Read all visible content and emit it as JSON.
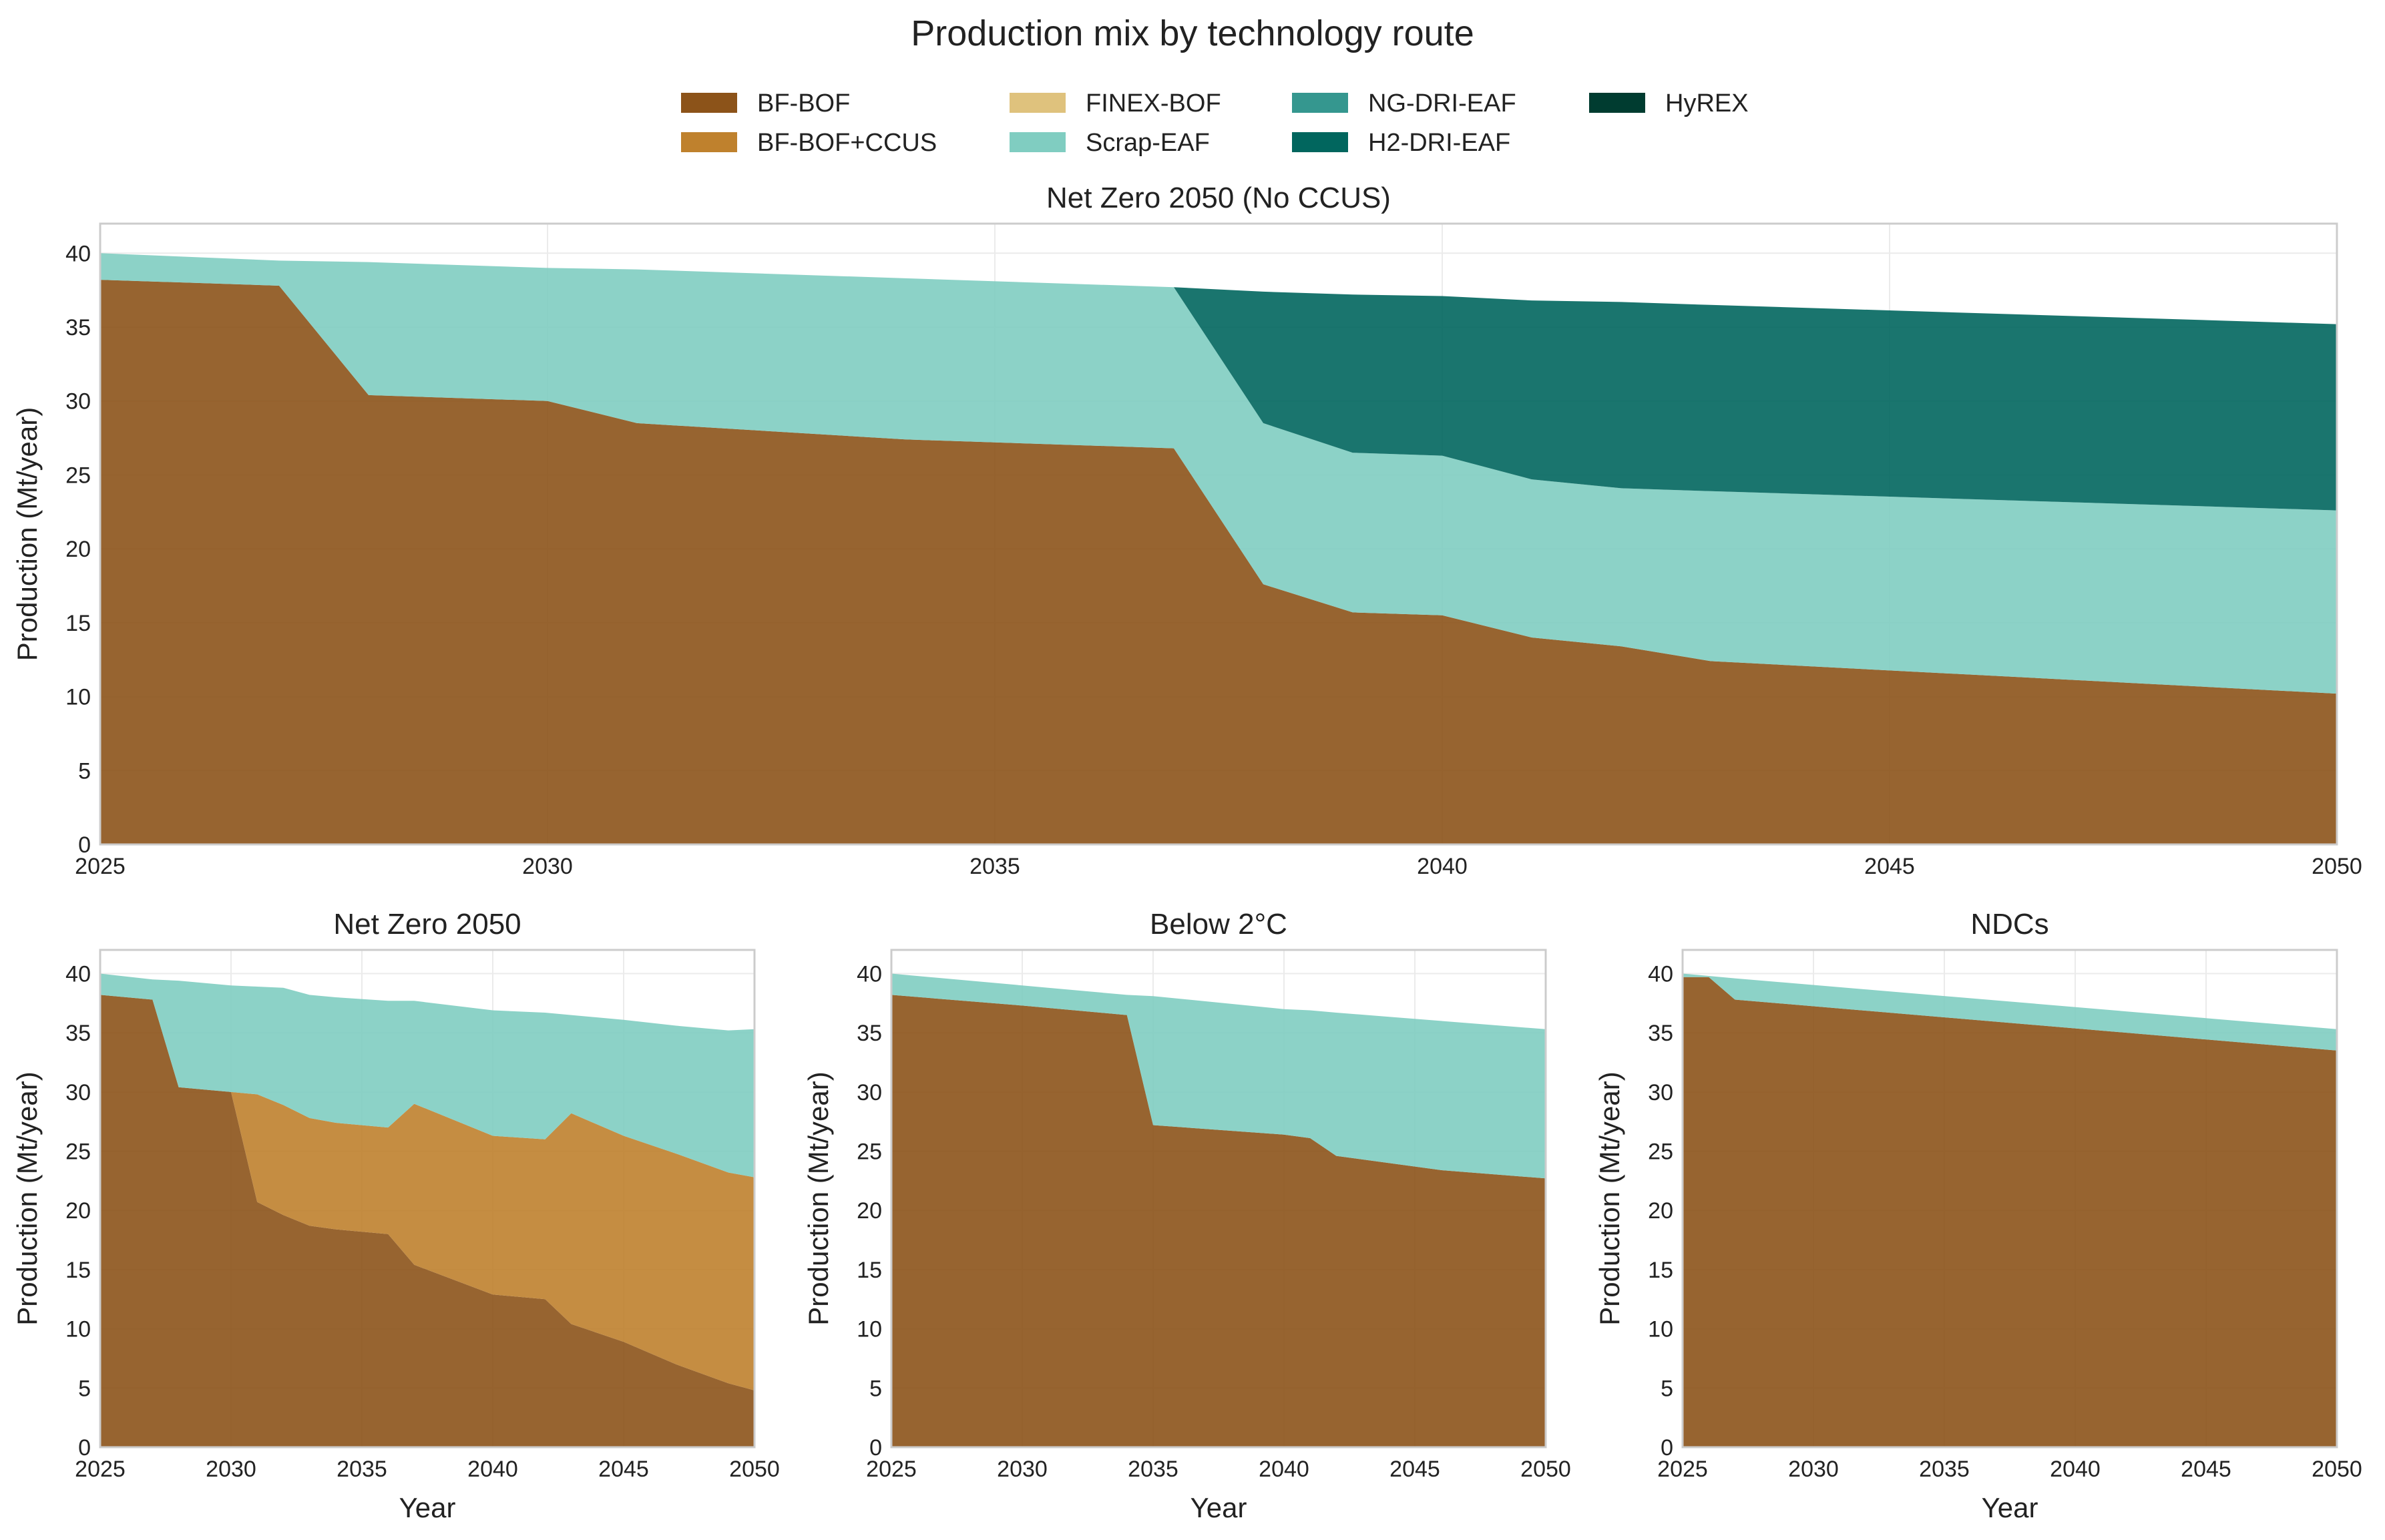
{
  "figure": {
    "title": "Production mix by technology route"
  },
  "legend": {
    "items": [
      {
        "name": "BF-BOF",
        "color": "#8C5319"
      },
      {
        "name": "BF-BOF+CCUS",
        "color": "#BF812D"
      },
      {
        "name": "FINEX-BOF",
        "color": "#DFC27D"
      },
      {
        "name": "Scrap-EAF",
        "color": "#80CDC1"
      },
      {
        "name": "NG-DRI-EAF",
        "color": "#35978F"
      },
      {
        "name": "H2-DRI-EAF",
        "color": "#01665E"
      },
      {
        "name": "HyREX",
        "color": "#003C30"
      }
    ]
  },
  "chart_data": [
    {
      "type": "area",
      "stacked": true,
      "title": "Net Zero 2050 (No CCUS)",
      "xlabel": "",
      "ylabel": "Production (Mt/year)",
      "xlim": [
        2025,
        2050
      ],
      "ylim": [
        0,
        42
      ],
      "xticks": [
        2025,
        2030,
        2035,
        2040,
        2045,
        2050
      ],
      "yticks": [
        0,
        5,
        10,
        15,
        20,
        25,
        30,
        35,
        40
      ],
      "grid": true,
      "x": [
        2025,
        2027,
        2028,
        2030,
        2031,
        2034,
        2037,
        2038,
        2039,
        2040,
        2041,
        2042,
        2043,
        2050
      ],
      "series": [
        {
          "name": "BF-BOF",
          "values": [
            38.2,
            37.8,
            30.4,
            30.0,
            28.5,
            27.4,
            26.8,
            17.6,
            15.7,
            15.5,
            14.0,
            13.4,
            12.4,
            10.2
          ]
        },
        {
          "name": "Scrap-EAF",
          "values": [
            1.8,
            1.7,
            9.0,
            9.0,
            10.4,
            10.9,
            10.9,
            10.9,
            10.8,
            10.8,
            10.7,
            10.7,
            11.5,
            12.4
          ]
        },
        {
          "name": "H2-DRI-EAF",
          "values": [
            0,
            0,
            0,
            0,
            0,
            0,
            0,
            8.9,
            10.7,
            10.8,
            12.1,
            12.6,
            12.6,
            12.6
          ]
        }
      ]
    },
    {
      "type": "area",
      "stacked": true,
      "title": "Net Zero 2050",
      "xlabel": "Year",
      "ylabel": "Production (Mt/year)",
      "xlim": [
        2025,
        2050
      ],
      "ylim": [
        0,
        42
      ],
      "xticks": [
        2025,
        2030,
        2035,
        2040,
        2045,
        2050
      ],
      "yticks": [
        0,
        5,
        10,
        15,
        20,
        25,
        30,
        35,
        40
      ],
      "grid": true,
      "x": [
        2025,
        2027,
        2028,
        2030,
        2031,
        2032,
        2033,
        2034,
        2036,
        2037,
        2040,
        2042,
        2043,
        2045,
        2047,
        2049,
        2050
      ],
      "series": [
        {
          "name": "BF-BOF",
          "values": [
            38.2,
            37.8,
            30.4,
            30.0,
            20.7,
            19.6,
            18.7,
            18.4,
            18.0,
            15.4,
            12.9,
            12.5,
            10.4,
            8.9,
            7.0,
            5.4,
            4.8
          ]
        },
        {
          "name": "BF-BOF+CCUS",
          "values": [
            0,
            0,
            0,
            0,
            9.1,
            9.3,
            9.1,
            9.0,
            9.0,
            13.6,
            13.4,
            13.5,
            17.8,
            17.4,
            17.8,
            17.8,
            18.0
          ]
        },
        {
          "name": "Scrap-EAF",
          "values": [
            1.8,
            1.7,
            9.0,
            9.0,
            9.1,
            9.9,
            10.4,
            10.6,
            10.7,
            8.7,
            10.6,
            10.7,
            8.3,
            9.8,
            10.8,
            12.0,
            12.5
          ]
        }
      ]
    },
    {
      "type": "area",
      "stacked": true,
      "title": "Below 2°C",
      "xlabel": "Year",
      "ylabel": "Production (Mt/year)",
      "xlim": [
        2025,
        2050
      ],
      "ylim": [
        0,
        42
      ],
      "xticks": [
        2025,
        2030,
        2035,
        2040,
        2045,
        2050
      ],
      "yticks": [
        0,
        5,
        10,
        15,
        20,
        25,
        30,
        35,
        40
      ],
      "grid": true,
      "x": [
        2025,
        2030,
        2034,
        2035,
        2040,
        2041,
        2042,
        2046,
        2050
      ],
      "series": [
        {
          "name": "BF-BOF",
          "values": [
            38.2,
            37.3,
            36.5,
            27.2,
            26.4,
            26.1,
            24.6,
            23.4,
            22.7
          ]
        },
        {
          "name": "Scrap-EAF",
          "values": [
            1.8,
            1.7,
            1.7,
            10.9,
            10.6,
            10.8,
            12.1,
            12.6,
            12.6
          ]
        }
      ]
    },
    {
      "type": "area",
      "stacked": true,
      "title": "NDCs",
      "xlabel": "Year",
      "ylabel": "Production (Mt/year)",
      "xlim": [
        2025,
        2050
      ],
      "ylim": [
        0,
        42
      ],
      "xticks": [
        2025,
        2030,
        2035,
        2040,
        2045,
        2050
      ],
      "yticks": [
        0,
        5,
        10,
        15,
        20,
        25,
        30,
        35,
        40
      ],
      "grid": true,
      "x": [
        2025,
        2026,
        2027,
        2050
      ],
      "series": [
        {
          "name": "BF-BOF",
          "values": [
            39.7,
            39.7,
            37.8,
            33.5
          ]
        },
        {
          "name": "Scrap-EAF",
          "values": [
            0.3,
            0.1,
            1.8,
            1.8
          ]
        }
      ]
    }
  ]
}
